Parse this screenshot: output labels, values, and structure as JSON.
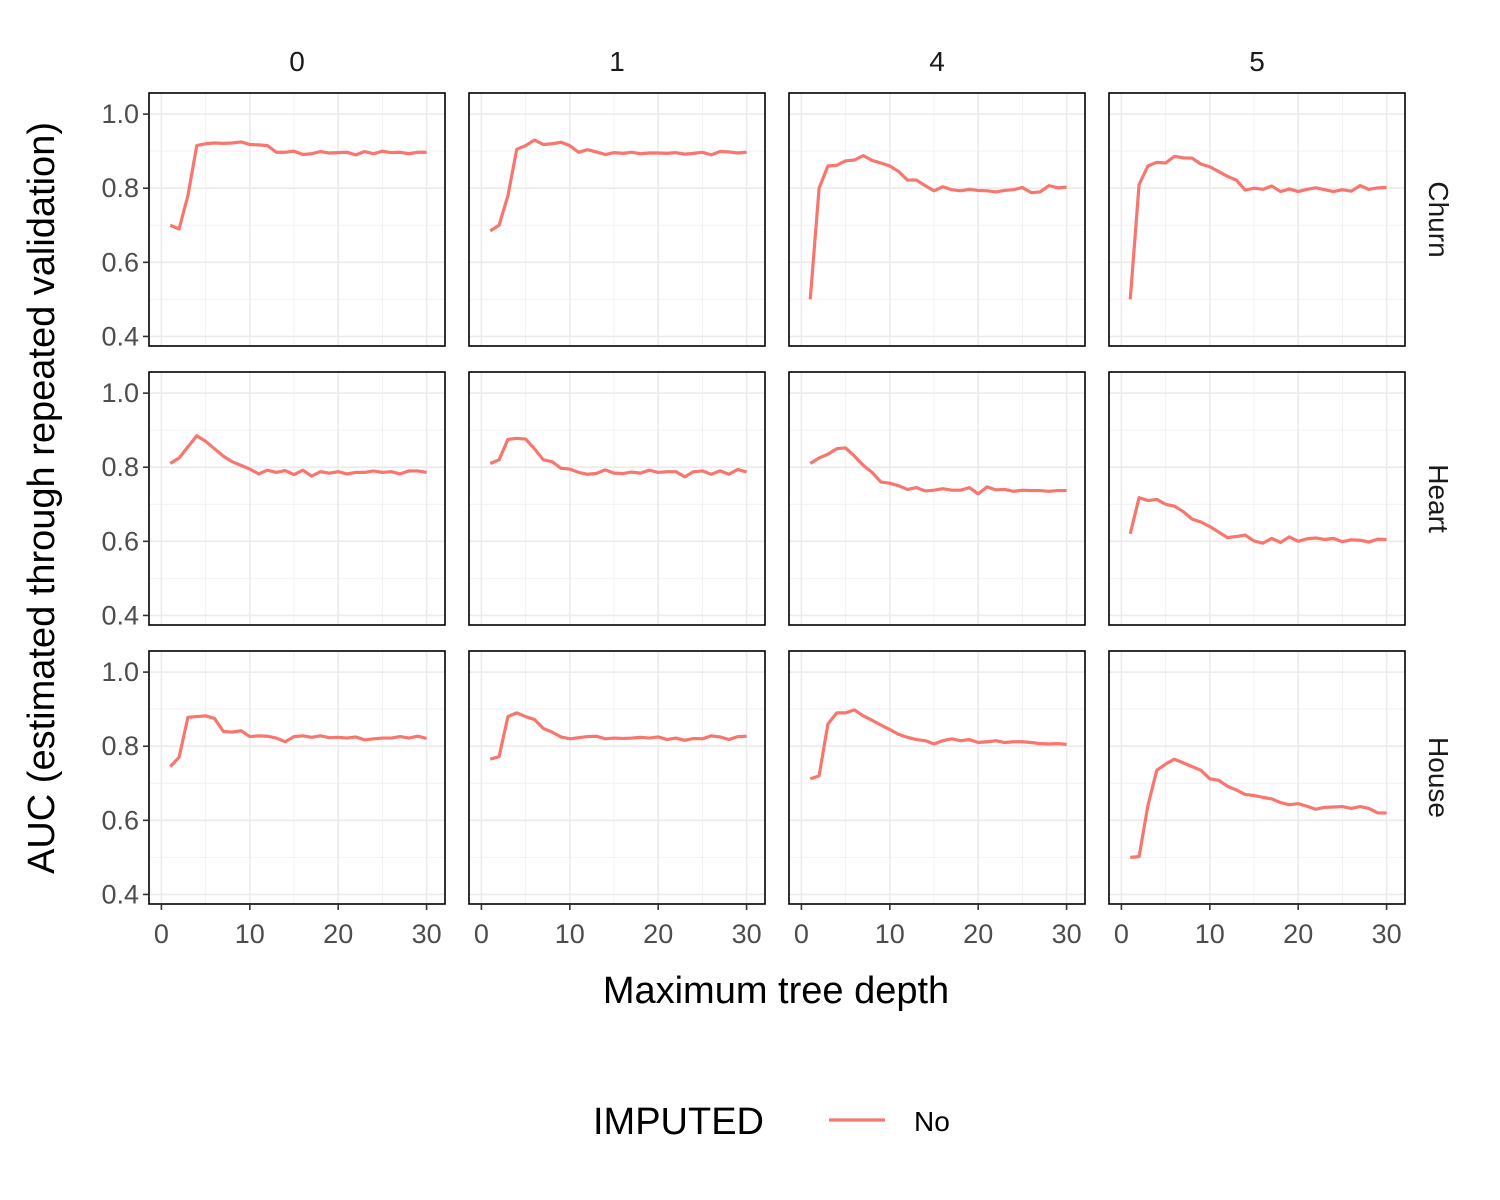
{
  "chart_data": {
    "type": "line",
    "title": "",
    "xlabel": "Maximum tree depth",
    "ylabel": "AUC (estimated through repeated validation)",
    "xlim": [
      0,
      30
    ],
    "ylim": [
      0.4,
      1.0
    ],
    "xticks": [
      0,
      10,
      20,
      30
    ],
    "yticks": [
      0.4,
      0.6,
      0.8,
      1.0
    ],
    "ytick_labels": [
      "0.4",
      "0.6",
      "0.8",
      "1.0"
    ],
    "grid": true,
    "legend": {
      "title": "IMPUTED",
      "position": "bottom",
      "entries": [
        {
          "name": "No",
          "color": "#F8766D"
        }
      ]
    },
    "facet_columns": [
      "0",
      "1",
      "4",
      "5"
    ],
    "facet_rows": [
      "Churn",
      "Heart",
      "House"
    ],
    "series_color": "#F8766D",
    "x": [
      1,
      2,
      3,
      4,
      5,
      6,
      7,
      8,
      9,
      10,
      11,
      12,
      13,
      14,
      15,
      16,
      17,
      18,
      19,
      20,
      21,
      22,
      23,
      24,
      25,
      26,
      27,
      28,
      29,
      30
    ],
    "panels": [
      {
        "row": "Churn",
        "col": "0",
        "series": [
          {
            "name": "No",
            "values": [
              0.7,
              0.69,
              0.78,
              0.915,
              0.92,
              0.922,
              0.921,
              0.922,
              0.925,
              0.918,
              0.917,
              0.915,
              0.897,
              0.897,
              0.9,
              0.891,
              0.893,
              0.899,
              0.895,
              0.896,
              0.897,
              0.89,
              0.899,
              0.893,
              0.9,
              0.896,
              0.897,
              0.893,
              0.897,
              0.897
            ]
          }
        ]
      },
      {
        "row": "Churn",
        "col": "1",
        "series": [
          {
            "name": "No",
            "values": [
              0.685,
              0.7,
              0.78,
              0.905,
              0.915,
              0.93,
              0.918,
              0.92,
              0.924,
              0.915,
              0.897,
              0.904,
              0.898,
              0.891,
              0.896,
              0.894,
              0.897,
              0.893,
              0.895,
              0.895,
              0.894,
              0.896,
              0.892,
              0.894,
              0.897,
              0.89,
              0.899,
              0.898,
              0.895,
              0.897
            ]
          }
        ]
      },
      {
        "row": "Churn",
        "col": "4",
        "series": [
          {
            "name": "No",
            "values": [
              0.5,
              0.8,
              0.86,
              0.862,
              0.874,
              0.876,
              0.888,
              0.875,
              0.868,
              0.86,
              0.845,
              0.822,
              0.822,
              0.807,
              0.793,
              0.804,
              0.796,
              0.793,
              0.797,
              0.794,
              0.793,
              0.79,
              0.794,
              0.796,
              0.802,
              0.788,
              0.79,
              0.807,
              0.801,
              0.803
            ]
          }
        ]
      },
      {
        "row": "Churn",
        "col": "5",
        "series": [
          {
            "name": "No",
            "values": [
              0.5,
              0.81,
              0.86,
              0.87,
              0.868,
              0.886,
              0.882,
              0.881,
              0.865,
              0.858,
              0.845,
              0.832,
              0.822,
              0.795,
              0.8,
              0.797,
              0.806,
              0.791,
              0.798,
              0.791,
              0.797,
              0.801,
              0.796,
              0.791,
              0.796,
              0.792,
              0.807,
              0.797,
              0.801,
              0.802
            ]
          }
        ]
      },
      {
        "row": "Heart",
        "col": "0",
        "series": [
          {
            "name": "No",
            "values": [
              0.81,
              0.825,
              0.855,
              0.885,
              0.87,
              0.85,
              0.83,
              0.815,
              0.805,
              0.795,
              0.782,
              0.792,
              0.786,
              0.791,
              0.78,
              0.792,
              0.776,
              0.788,
              0.784,
              0.788,
              0.782,
              0.786,
              0.786,
              0.79,
              0.786,
              0.788,
              0.782,
              0.79,
              0.79,
              0.786
            ]
          }
        ]
      },
      {
        "row": "Heart",
        "col": "1",
        "series": [
          {
            "name": "No",
            "values": [
              0.81,
              0.82,
              0.875,
              0.878,
              0.876,
              0.85,
              0.82,
              0.815,
              0.797,
              0.795,
              0.786,
              0.781,
              0.783,
              0.793,
              0.784,
              0.783,
              0.787,
              0.784,
              0.792,
              0.786,
              0.788,
              0.788,
              0.774,
              0.788,
              0.79,
              0.781,
              0.79,
              0.781,
              0.794,
              0.787
            ]
          }
        ]
      },
      {
        "row": "Heart",
        "col": "4",
        "series": [
          {
            "name": "No",
            "values": [
              0.81,
              0.825,
              0.835,
              0.85,
              0.852,
              0.83,
              0.805,
              0.786,
              0.76,
              0.757,
              0.75,
              0.74,
              0.745,
              0.736,
              0.738,
              0.742,
              0.738,
              0.738,
              0.745,
              0.728,
              0.747,
              0.739,
              0.74,
              0.735,
              0.738,
              0.737,
              0.737,
              0.735,
              0.737,
              0.737
            ]
          }
        ]
      },
      {
        "row": "Heart",
        "col": "5",
        "series": [
          {
            "name": "No",
            "values": [
              0.62,
              0.718,
              0.71,
              0.713,
              0.7,
              0.695,
              0.68,
              0.66,
              0.652,
              0.64,
              0.625,
              0.61,
              0.613,
              0.617,
              0.601,
              0.595,
              0.608,
              0.597,
              0.612,
              0.6,
              0.607,
              0.609,
              0.605,
              0.608,
              0.599,
              0.604,
              0.603,
              0.598,
              0.606,
              0.605
            ]
          }
        ]
      },
      {
        "row": "House",
        "col": "0",
        "series": [
          {
            "name": "No",
            "values": [
              0.745,
              0.77,
              0.878,
              0.88,
              0.882,
              0.875,
              0.84,
              0.838,
              0.842,
              0.826,
              0.828,
              0.827,
              0.822,
              0.812,
              0.826,
              0.828,
              0.824,
              0.828,
              0.823,
              0.824,
              0.822,
              0.825,
              0.817,
              0.82,
              0.822,
              0.822,
              0.826,
              0.822,
              0.827,
              0.821
            ]
          }
        ]
      },
      {
        "row": "House",
        "col": "1",
        "series": [
          {
            "name": "No",
            "values": [
              0.765,
              0.772,
              0.88,
              0.89,
              0.88,
              0.872,
              0.848,
              0.838,
              0.825,
              0.82,
              0.823,
              0.826,
              0.827,
              0.82,
              0.822,
              0.821,
              0.822,
              0.824,
              0.822,
              0.825,
              0.818,
              0.822,
              0.816,
              0.821,
              0.82,
              0.828,
              0.825,
              0.818,
              0.826,
              0.827
            ]
          }
        ]
      },
      {
        "row": "House",
        "col": "4",
        "series": [
          {
            "name": "No",
            "values": [
              0.712,
              0.72,
              0.86,
              0.89,
              0.89,
              0.898,
              0.882,
              0.87,
              0.857,
              0.845,
              0.832,
              0.824,
              0.818,
              0.815,
              0.806,
              0.815,
              0.82,
              0.815,
              0.818,
              0.81,
              0.812,
              0.815,
              0.81,
              0.812,
              0.812,
              0.81,
              0.807,
              0.806,
              0.807,
              0.805
            ]
          }
        ]
      },
      {
        "row": "House",
        "col": "5",
        "series": [
          {
            "name": "No",
            "values": [
              0.5,
              0.502,
              0.64,
              0.735,
              0.752,
              0.765,
              0.755,
              0.745,
              0.735,
              0.712,
              0.708,
              0.692,
              0.682,
              0.67,
              0.667,
              0.662,
              0.658,
              0.648,
              0.642,
              0.645,
              0.638,
              0.63,
              0.635,
              0.636,
              0.637,
              0.632,
              0.637,
              0.632,
              0.62,
              0.62
            ]
          }
        ]
      }
    ]
  }
}
